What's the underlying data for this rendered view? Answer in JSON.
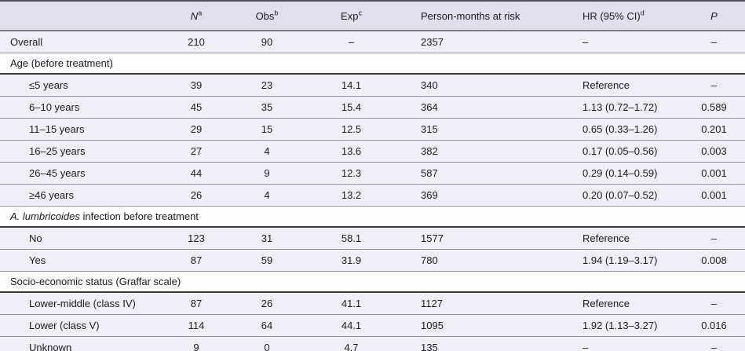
{
  "table": {
    "columns": [
      {
        "key": "label",
        "label": "",
        "italic": false,
        "sup": ""
      },
      {
        "key": "n",
        "label": "N",
        "italic": true,
        "sup": "a"
      },
      {
        "key": "obs",
        "label": "Obs",
        "italic": false,
        "sup": "b"
      },
      {
        "key": "exp",
        "label": "Exp",
        "italic": false,
        "sup": "c"
      },
      {
        "key": "person_months",
        "label": "Person-months at risk",
        "italic": false,
        "sup": ""
      },
      {
        "key": "hr",
        "label": "HR (95% CI)",
        "italic": false,
        "sup": "d"
      },
      {
        "key": "p",
        "label": "P",
        "italic": true,
        "sup": ""
      }
    ],
    "rows": [
      {
        "type": "data",
        "indent": false,
        "label": "Overall",
        "cells": [
          "210",
          "90",
          "–",
          "2357",
          "–",
          "–"
        ]
      },
      {
        "type": "section",
        "label": "Age (before treatment)"
      },
      {
        "type": "data",
        "indent": true,
        "label": "≤5 years",
        "cells": [
          "39",
          "23",
          "14.1",
          "340",
          "Reference",
          "–"
        ]
      },
      {
        "type": "data",
        "indent": true,
        "label": "6–10 years",
        "cells": [
          "45",
          "35",
          "15.4",
          "364",
          "1.13 (0.72–1.72)",
          "0.589"
        ]
      },
      {
        "type": "data",
        "indent": true,
        "label": "11–15 years",
        "cells": [
          "29",
          "15",
          "12.5",
          "315",
          "0.65 (0.33–1.26)",
          "0.201"
        ]
      },
      {
        "type": "data",
        "indent": true,
        "label": "16–25 years",
        "cells": [
          "27",
          "4",
          "13.6",
          "382",
          "0.17 (0.05–0.56)",
          "0.003"
        ]
      },
      {
        "type": "data",
        "indent": true,
        "label": "26–45 years",
        "cells": [
          "44",
          "9",
          "12.3",
          "587",
          "0.29 (0.14–0.59)",
          "0.001"
        ]
      },
      {
        "type": "data",
        "indent": true,
        "label": "≥46 years",
        "cells": [
          "26",
          "4",
          "13.2",
          "369",
          "0.20 (0.07–0.52)",
          "0.001"
        ]
      },
      {
        "type": "section",
        "label_italic": "A. lumbricoides",
        "label": " infection before treatment"
      },
      {
        "type": "data",
        "indent": true,
        "label": "No",
        "cells": [
          "123",
          "31",
          "58.1",
          "1577",
          "Reference",
          "–"
        ]
      },
      {
        "type": "data",
        "indent": true,
        "label": "Yes",
        "cells": [
          "87",
          "59",
          "31.9",
          "780",
          "1.94 (1.19–3.17)",
          "0.008"
        ]
      },
      {
        "type": "section",
        "label": "Socio-economic status (Graffar scale)"
      },
      {
        "type": "data",
        "indent": true,
        "label": "Lower-middle (class IV)",
        "cells": [
          "87",
          "26",
          "41.1",
          "1127",
          "Reference",
          "–"
        ]
      },
      {
        "type": "data",
        "indent": true,
        "label": "Lower (class V)",
        "cells": [
          "114",
          "64",
          "44.1",
          "1095",
          "1.92 (1.13–3.27)",
          "0.016"
        ]
      },
      {
        "type": "data",
        "indent": true,
        "label": "Unknown",
        "cells": [
          "9",
          "0",
          "4.7",
          "135",
          "–",
          "–"
        ]
      }
    ]
  },
  "colors": {
    "header_bg": "#dce1ec",
    "data_row_bg": "#edf0f6",
    "section_row_bg": "#fdfdfe",
    "row_separator": "#8f8f98",
    "section_separator": "#3c3c45",
    "header_separator": "#7c7c85",
    "table_top_border": "#53535c",
    "table_bottom_border": "#17171c",
    "text": "#1c1c22"
  }
}
